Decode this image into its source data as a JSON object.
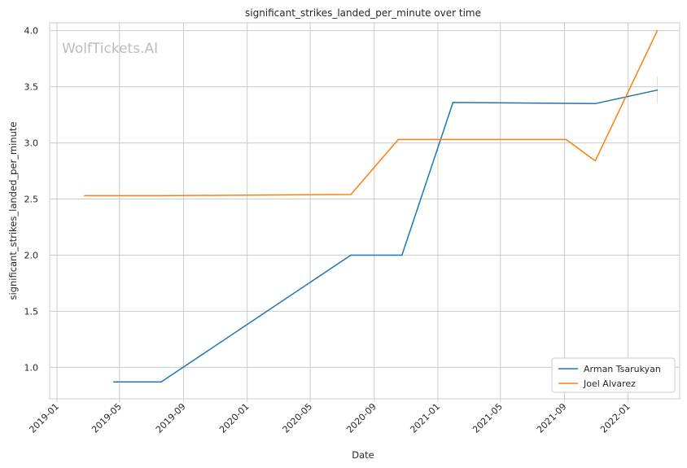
{
  "chart_data": {
    "type": "line",
    "title": "significant_strikes_landed_per_minute over time",
    "xlabel": "Date",
    "ylabel": "significant_strikes_landed_per_minute",
    "watermark": "WolfTickets.AI",
    "x_ticks": [
      "2019-01",
      "2019-05",
      "2019-09",
      "2020-01",
      "2020-05",
      "2020-09",
      "2021-01",
      "2021-05",
      "2021-09",
      "2022-01"
    ],
    "y_ticks": [
      "1.0",
      "1.5",
      "2.0",
      "2.5",
      "3.0",
      "3.5",
      "4.0"
    ],
    "xlim": [
      "2018-12-18",
      "2022-04-10"
    ],
    "ylim": [
      0.72,
      4.07
    ],
    "grid": true,
    "legend_position": "lower-right",
    "series": [
      {
        "name": "Arman Tsarukyan",
        "color": "#1f77b4",
        "x": [
          "2019-04-20",
          "2019-07-20",
          "2020-07-18",
          "2020-10-24",
          "2021-01-30",
          "2021-10-30",
          "2022-02-26"
        ],
        "y": [
          0.87,
          0.87,
          2.0,
          2.0,
          3.36,
          3.35,
          3.47
        ],
        "error_bar": {
          "x": "2022-02-26",
          "low": 3.35,
          "high": 3.59
        }
      },
      {
        "name": "Joel Alvarez",
        "color": "#ff7f0e",
        "x": [
          "2019-02-23",
          "2019-07-20",
          "2020-07-18",
          "2020-10-17",
          "2021-09-04",
          "2021-10-30",
          "2022-02-26"
        ],
        "y": [
          2.53,
          2.53,
          2.54,
          3.03,
          3.03,
          2.84,
          4.0
        ]
      }
    ]
  }
}
